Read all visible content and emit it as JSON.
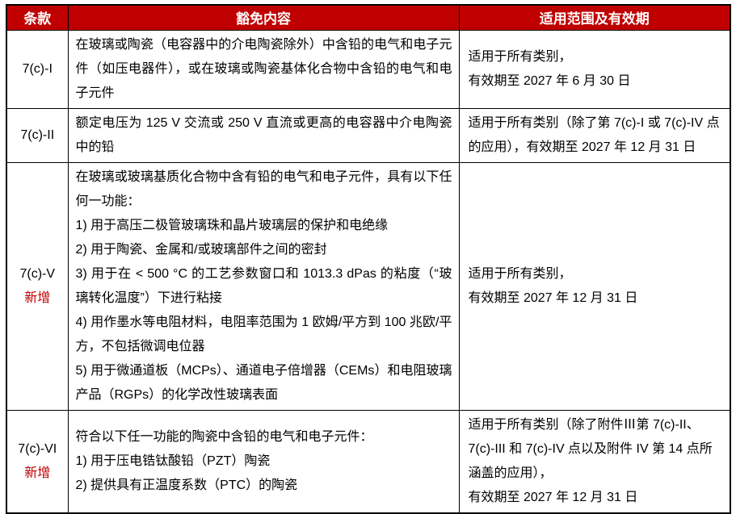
{
  "colors": {
    "header_background": "#c00000",
    "header_text": "#ffffff",
    "border": "#000000",
    "new_badge_text": "#c00000",
    "body_text": "#000000"
  },
  "table": {
    "headers": [
      {
        "label": "条款"
      },
      {
        "label": "豁免内容"
      },
      {
        "label": "适用范围及有效期"
      }
    ],
    "rows": [
      {
        "clause": "7(c)-I",
        "new_label": "",
        "exemption_paragraphs": [
          "在玻璃或陶瓷（电容器中的介电陶瓷除外）中含铅的电气和电子元件（如压电器件），或在玻璃或陶瓷基体化合物中含铅的电气和电子元件"
        ],
        "scope_paragraphs": [
          "适用于所有类别，",
          "有效期至 2027 年 6 月 30 日"
        ]
      },
      {
        "clause": "7(c)-II",
        "new_label": "",
        "exemption_paragraphs": [
          "额定电压为 125 V 交流或 250 V 直流或更高的电容器中介电陶瓷中的铅"
        ],
        "scope_paragraphs": [
          "适用于所有类别（除了第 7(c)-I 或 7(c)-IV 点的应用），有效期至 2027 年 12 月 31 日"
        ]
      },
      {
        "clause": "7(c)-V",
        "new_label": "新增",
        "exemption_paragraphs": [
          "在玻璃或玻璃基质化合物中含有铅的电气和电子元件，具有以下任何一功能：",
          "1) 用于高压二极管玻璃珠和晶片玻璃层的保护和电绝缘",
          "2) 用于陶瓷、金属和/或玻璃部件之间的密封",
          "3) 用于在 < 500 °C 的工艺参数窗口和 1013.3 dPas 的粘度（“玻璃转化温度”）下进行粘接",
          "4) 用作墨水等电阻材料，电阻率范围为 1 欧姆/平方到 100 兆欧/平方，不包括微调电位器",
          "5) 用于微通道板（MCPs）、通道电子倍增器（CEMs）和电阻玻璃产品（RGPs）的化学改性玻璃表面"
        ],
        "scope_paragraphs": [
          "适用于所有类别，",
          "有效期至 2027 年 12 月 31 日"
        ]
      },
      {
        "clause": "7(c)-VI",
        "new_label": "新增",
        "exemption_paragraphs": [
          "符合以下任一功能的陶瓷中含铅的电气和电子元件：",
          "1) 用于压电锆钛酸铅（PZT）陶瓷",
          "2) 提供具有正温度系数（PTC）的陶瓷"
        ],
        "scope_paragraphs": [
          "适用于所有类别（除了附件Ⅲ第 7(c)-II、7(c)-III 和 7(c)-IV 点以及附件 IV 第 14 点所涵盖的应用），",
          "有效期至 2027 年 12 月 31 日"
        ]
      }
    ]
  }
}
